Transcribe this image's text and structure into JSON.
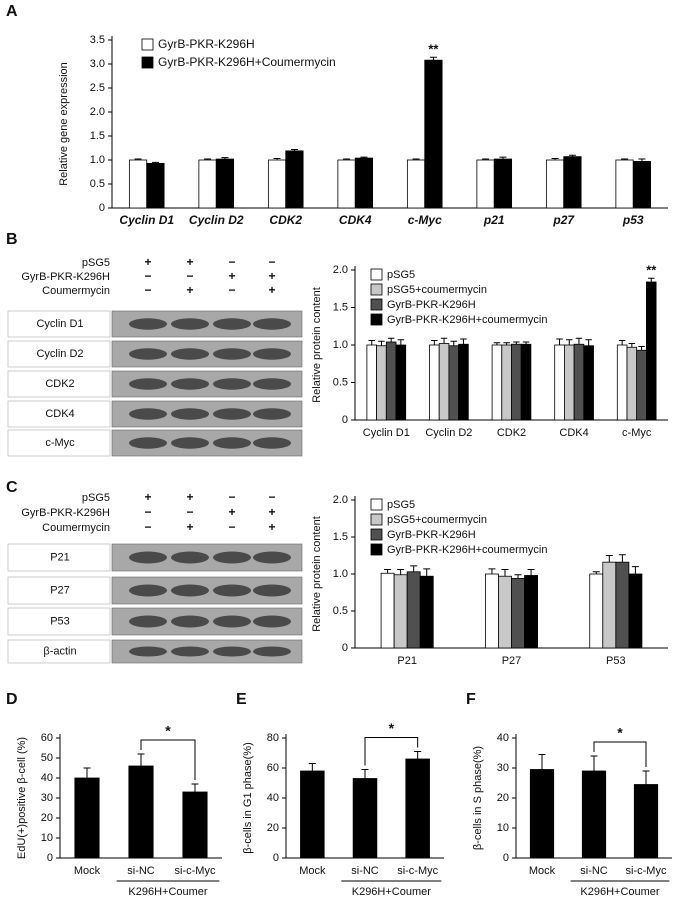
{
  "chart_data": [
    {
      "panel": "A",
      "type": "bar",
      "y_label": "Relative gene expression",
      "categories": [
        "Cyclin D1",
        "Cyclin D2",
        "CDK2",
        "CDK4",
        "c-Myc",
        "p21",
        "p27",
        "p53"
      ],
      "series": [
        {
          "name": "GyrB-PKR-K296H",
          "color": "#ffffff",
          "values": [
            1.0,
            1.0,
            1.0,
            1.0,
            1.0,
            1.0,
            1.0,
            1.0
          ],
          "errors": [
            0.02,
            0.02,
            0.03,
            0.02,
            0.02,
            0.02,
            0.03,
            0.02
          ]
        },
        {
          "name": "GyrB-PKR-K296H+Coumermycin",
          "color": "#000000",
          "values": [
            0.93,
            1.02,
            1.19,
            1.04,
            3.08,
            1.02,
            1.07,
            0.97
          ],
          "errors": [
            0.02,
            0.03,
            0.03,
            0.02,
            0.06,
            0.04,
            0.03,
            0.05
          ]
        }
      ],
      "significance": [
        null,
        null,
        null,
        null,
        "**",
        null,
        null,
        null
      ],
      "ylim": [
        0,
        3.5
      ],
      "yticks": [
        0,
        0.5,
        {
          "value": 1,
          "label": "1.0"
        },
        1.5,
        {
          "value": 2,
          "label": "2.0"
        },
        2.5,
        {
          "value": 3,
          "label": "3.0"
        },
        3.5
      ],
      "legend": "upper left"
    },
    {
      "panel": "B",
      "type": "bar",
      "y_label": "Relative protein content",
      "categories": [
        "Cyclin D1",
        "Cyclin D2",
        "CDK2",
        "CDK4",
        "c-Myc"
      ],
      "series": [
        {
          "name": "pSG5",
          "color": "#ffffff",
          "values": [
            1.0,
            1.0,
            1.0,
            1.0,
            1.0
          ],
          "errors": [
            0.06,
            0.06,
            0.03,
            0.08,
            0.06
          ]
        },
        {
          "name": "pSG5+coumermycin",
          "color": "#c8c8c8",
          "values": [
            0.99,
            1.02,
            1.0,
            1.0,
            0.97
          ],
          "errors": [
            0.06,
            0.07,
            0.03,
            0.07,
            0.05
          ]
        },
        {
          "name": "GyrB-PKR-K296H",
          "color": "#505050",
          "values": [
            1.04,
            0.99,
            1.01,
            1.01,
            0.93
          ],
          "errors": [
            0.05,
            0.06,
            0.03,
            0.08,
            0.05
          ]
        },
        {
          "name": "GyrB-PKR-K296H+coumermycin",
          "color": "#000000",
          "values": [
            1.0,
            1.01,
            1.01,
            0.99,
            1.84
          ],
          "errors": [
            0.07,
            0.07,
            0.03,
            0.08,
            0.05
          ]
        }
      ],
      "significance": [
        null,
        null,
        null,
        null,
        "**"
      ],
      "ylim": [
        0,
        2
      ],
      "yticks": [
        0,
        0.5,
        {
          "value": 1,
          "label": "1.0"
        },
        1.5,
        {
          "value": 2,
          "label": "2.0"
        }
      ],
      "legend": "upper left"
    },
    {
      "panel": "C",
      "type": "bar",
      "y_label": "Relative protein content",
      "categories": [
        "P21",
        "P27",
        "P53"
      ],
      "series": [
        {
          "name": "pSG5",
          "color": "#ffffff",
          "values": [
            1.01,
            1.0,
            1.0
          ],
          "errors": [
            0.05,
            0.07,
            0.03
          ]
        },
        {
          "name": "pSG5+coumermycin",
          "color": "#c8c8c8",
          "values": [
            0.99,
            0.97,
            1.16
          ],
          "errors": [
            0.07,
            0.09,
            0.09
          ]
        },
        {
          "name": "GyrB-PKR-K296H",
          "color": "#505050",
          "values": [
            1.03,
            0.94,
            1.16
          ],
          "errors": [
            0.08,
            0.05,
            0.1
          ]
        },
        {
          "name": "GyrB-PKR-K296H+coumermycin",
          "color": "#000000",
          "values": [
            0.97,
            0.98,
            1.0
          ],
          "errors": [
            0.1,
            0.08,
            0.1
          ]
        }
      ],
      "ylim": [
        0,
        2
      ],
      "yticks": [
        0,
        0.5,
        {
          "value": 1,
          "label": "1.0"
        },
        1.5,
        {
          "value": 2,
          "label": "2.0"
        }
      ],
      "legend": "upper left"
    },
    {
      "panel": "D",
      "type": "bar",
      "y_label": "EdU(+)positive β-cell (%)",
      "categories": [
        "Mock",
        "si-NC",
        "si-c-Myc"
      ],
      "values": [
        40,
        46,
        33
      ],
      "errors": [
        5,
        6,
        4
      ],
      "color": "#000000",
      "bracket_label": "*",
      "group_label": "K296H+Coumer",
      "ylim": [
        0,
        60
      ],
      "yticks": [
        0,
        10,
        20,
        30,
        40,
        50,
        60
      ]
    },
    {
      "panel": "E",
      "type": "bar",
      "y_label": "β-cells in G1 phase(%)",
      "categories": [
        "Mock",
        "si-NC",
        "si-c-Myc"
      ],
      "values": [
        58,
        53,
        66
      ],
      "errors": [
        5,
        6,
        5
      ],
      "color": "#000000",
      "bracket_label": "*",
      "group_label": "K296H+Coumer",
      "ylim": [
        0,
        80
      ],
      "yticks": [
        0,
        20,
        40,
        60,
        80
      ]
    },
    {
      "panel": "F",
      "type": "bar",
      "y_label": "β-cells in S phase(%)",
      "categories": [
        "Mock",
        "si-NC",
        "si-c-Myc"
      ],
      "values": [
        29.5,
        29,
        24.5
      ],
      "errors": [
        5,
        5,
        4.5
      ],
      "color": "#000000",
      "bracket_label": "*",
      "group_label": "K296H+Coumer",
      "ylim": [
        0,
        40
      ],
      "yticks": [
        0,
        10,
        20,
        30,
        40
      ]
    }
  ],
  "blots": [
    {
      "treatments": [
        {
          "name": "pSG5",
          "signs": [
            "+",
            "+",
            "−",
            "−"
          ]
        },
        {
          "name": "GyrB-PKR-K296H",
          "signs": [
            "−",
            "−",
            "+",
            "+"
          ]
        },
        {
          "name": "Coumermycin",
          "signs": [
            "−",
            "+",
            "−",
            "+"
          ]
        }
      ],
      "bands": [
        "Cyclin D1",
        "Cyclin D2",
        "CDK2",
        "CDK4",
        "c-Myc"
      ]
    },
    {
      "treatments": [
        {
          "name": "pSG5",
          "signs": [
            "+",
            "+",
            "−",
            "−"
          ]
        },
        {
          "name": "GyrB-PKR-K296H",
          "signs": [
            "−",
            "−",
            "+",
            "+"
          ]
        },
        {
          "name": "Coumermycin",
          "signs": [
            "−",
            "+",
            "−",
            "+"
          ]
        }
      ],
      "bands": [
        "P21",
        "P27",
        "P53",
        "β-actin"
      ]
    }
  ]
}
